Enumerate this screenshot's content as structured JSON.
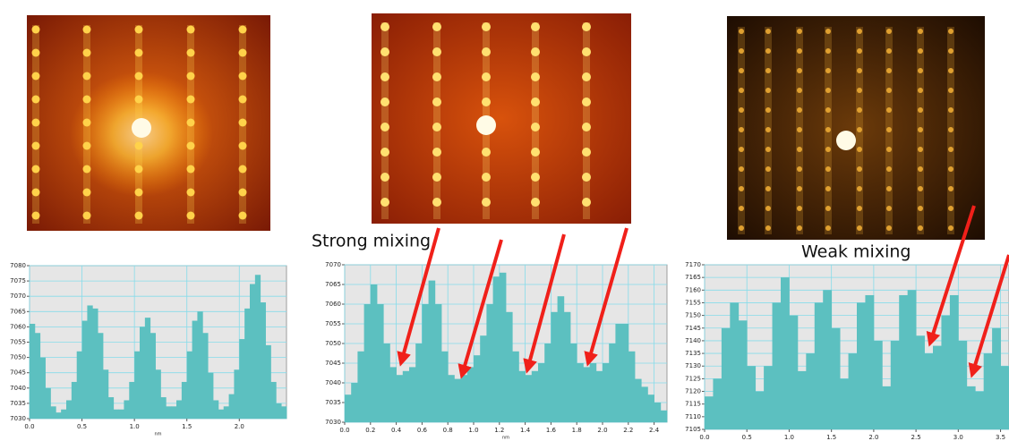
{
  "chart_data": [
    {
      "type": "bar",
      "color": "#5cc0c0",
      "grid": true,
      "x_label": "nm",
      "xlim": [
        0,
        2.45
      ],
      "ylim": [
        7030,
        7080
      ],
      "xticks": [
        {
          "value": 0,
          "label": "0.0"
        },
        {
          "value": 0.5,
          "label": "0.5"
        },
        {
          "value": 1,
          "label": "1.0"
        },
        {
          "value": 1.5,
          "label": "1.5"
        },
        {
          "value": 2,
          "label": "2.0"
        }
      ],
      "yticks": [
        7030,
        7035,
        7040,
        7045,
        7050,
        7055,
        7060,
        7065,
        7070,
        7075,
        7080
      ],
      "x": [
        0,
        0.05,
        0.1,
        0.15,
        0.2,
        0.25,
        0.3,
        0.35,
        0.4,
        0.45,
        0.5,
        0.55,
        0.6,
        0.65,
        0.7,
        0.75,
        0.8,
        0.85,
        0.9,
        0.95,
        1.0,
        1.05,
        1.1,
        1.15,
        1.2,
        1.25,
        1.3,
        1.35,
        1.4,
        1.45,
        1.5,
        1.55,
        1.6,
        1.65,
        1.7,
        1.75,
        1.8,
        1.85,
        1.9,
        1.95,
        2.0,
        2.05,
        2.1,
        2.15,
        2.2,
        2.25,
        2.3,
        2.35,
        2.4
      ],
      "values": [
        7061,
        7058,
        7050,
        7040,
        7034,
        7032,
        7033,
        7036,
        7042,
        7052,
        7062,
        7067,
        7066,
        7058,
        7046,
        7037,
        7033,
        7033,
        7036,
        7042,
        7052,
        7060,
        7063,
        7058,
        7046,
        7037,
        7034,
        7034,
        7036,
        7042,
        7052,
        7062,
        7065,
        7058,
        7045,
        7036,
        7033,
        7034,
        7038,
        7046,
        7056,
        7066,
        7074,
        7077,
        7068,
        7054,
        7042,
        7035,
        7034
      ]
    },
    {
      "type": "bar",
      "color": "#5cc0c0",
      "grid": true,
      "x_label": "nm",
      "annotation": "Strong mixing",
      "xlim": [
        0,
        2.5
      ],
      "ylim": [
        7030,
        7070
      ],
      "xticks": [
        {
          "value": 0,
          "label": "0.0"
        },
        {
          "value": 0.2,
          "label": "0.2"
        },
        {
          "value": 0.4,
          "label": "0.4"
        },
        {
          "value": 0.6,
          "label": "0.6"
        },
        {
          "value": 0.8,
          "label": "0.8"
        },
        {
          "value": 1,
          "label": "1.0"
        },
        {
          "value": 1.2,
          "label": "1.2"
        },
        {
          "value": 1.4,
          "label": "1.4"
        },
        {
          "value": 1.6,
          "label": "1.6"
        },
        {
          "value": 1.8,
          "label": "1.8"
        },
        {
          "value": 2,
          "label": "2.0"
        },
        {
          "value": 2.2,
          "label": "2.2"
        },
        {
          "value": 2.4,
          "label": "2.4"
        }
      ],
      "yticks": [
        7030,
        7035,
        7040,
        7045,
        7050,
        7055,
        7060,
        7065,
        7070
      ],
      "x": [
        0,
        0.05,
        0.1,
        0.15,
        0.2,
        0.25,
        0.3,
        0.35,
        0.4,
        0.45,
        0.5,
        0.55,
        0.6,
        0.65,
        0.7,
        0.75,
        0.8,
        0.85,
        0.9,
        0.95,
        1.0,
        1.05,
        1.1,
        1.15,
        1.2,
        1.25,
        1.3,
        1.35,
        1.4,
        1.45,
        1.5,
        1.55,
        1.6,
        1.65,
        1.7,
        1.75,
        1.8,
        1.85,
        1.9,
        1.95,
        2.0,
        2.05,
        2.1,
        2.15,
        2.2,
        2.25,
        2.3,
        2.35,
        2.4,
        2.45
      ],
      "values": [
        7037,
        7040,
        7048,
        7060,
        7065,
        7060,
        7050,
        7044,
        7042,
        7043,
        7044,
        7050,
        7060,
        7066,
        7060,
        7048,
        7042,
        7041,
        7042,
        7044,
        7047,
        7052,
        7060,
        7067,
        7068,
        7058,
        7048,
        7043,
        7042,
        7043,
        7045,
        7050,
        7058,
        7062,
        7058,
        7050,
        7045,
        7044,
        7045,
        7043,
        7045,
        7050,
        7055,
        7055,
        7048,
        7041,
        7039,
        7037,
        7035,
        7033
      ]
    },
    {
      "type": "bar",
      "color": "#5cc0c0",
      "grid": true,
      "annotation": "Weak mixing",
      "xlim": [
        0,
        3.6
      ],
      "ylim": [
        7105,
        7170
      ],
      "xticks": [
        {
          "value": 0,
          "label": "0.0"
        },
        {
          "value": 0.5,
          "label": "0.5"
        },
        {
          "value": 1,
          "label": "1.0"
        },
        {
          "value": 1.5,
          "label": "1.5"
        },
        {
          "value": 2,
          "label": "2.0"
        },
        {
          "value": 2.5,
          "label": "2.5"
        },
        {
          "value": 3,
          "label": "3.0"
        },
        {
          "value": 3.5,
          "label": "3.5"
        }
      ],
      "yticks": [
        7105,
        7110,
        7115,
        7120,
        7125,
        7130,
        7135,
        7140,
        7145,
        7150,
        7155,
        7160,
        7165,
        7170
      ],
      "x": [
        0,
        0.1,
        0.2,
        0.3,
        0.4,
        0.5,
        0.6,
        0.7,
        0.8,
        0.9,
        1.0,
        1.1,
        1.2,
        1.3,
        1.4,
        1.5,
        1.6,
        1.7,
        1.8,
        1.9,
        2.0,
        2.1,
        2.2,
        2.3,
        2.4,
        2.5,
        2.6,
        2.7,
        2.8,
        2.9,
        3.0,
        3.1,
        3.2,
        3.3,
        3.4,
        3.5
      ],
      "values": [
        7118,
        7125,
        7145,
        7155,
        7148,
        7130,
        7120,
        7130,
        7155,
        7165,
        7150,
        7128,
        7135,
        7155,
        7160,
        7145,
        7125,
        7135,
        7155,
        7158,
        7140,
        7122,
        7140,
        7158,
        7160,
        7142,
        7135,
        7138,
        7150,
        7158,
        7140,
        7122,
        7120,
        7135,
        7145,
        7130
      ]
    }
  ]
}
